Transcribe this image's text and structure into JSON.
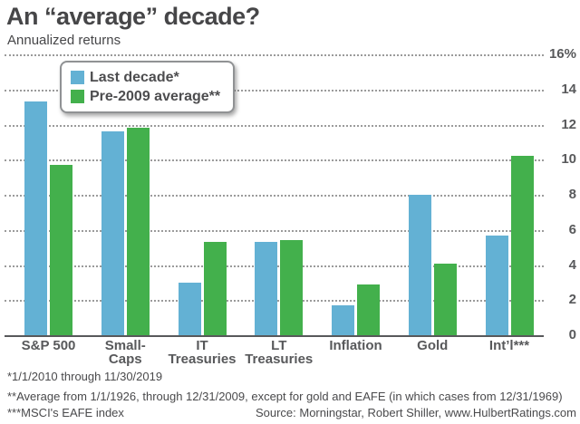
{
  "header": {
    "title": "An “average” decade?",
    "subtitle": "Annualized returns"
  },
  "legend": {
    "items": [
      {
        "label": "Last decade*",
        "color": "#63b1d4"
      },
      {
        "label": "Pre-2009 average**",
        "color": "#43b04c"
      }
    ]
  },
  "chart_data": {
    "type": "bar",
    "title": "An “average” decade?",
    "subtitle": "Annualized returns",
    "categories": [
      "S&P 500",
      "Small-Caps",
      "IT Treasuries",
      "LT Treasuries",
      "Inflation",
      "Gold",
      "Int’l***"
    ],
    "category_lines": [
      [
        "S&P 500"
      ],
      [
        "Small-",
        "Caps"
      ],
      [
        "IT",
        "Treasuries"
      ],
      [
        "LT",
        "Treasuries"
      ],
      [
        "Inflation"
      ],
      [
        "Gold"
      ],
      [
        "Int’l***"
      ]
    ],
    "series": [
      {
        "name": "Last decade*",
        "color": "#63b1d4",
        "values": [
          13.3,
          11.6,
          3.0,
          5.3,
          1.7,
          8.0,
          5.7
        ]
      },
      {
        "name": "Pre-2009 average**",
        "color": "#43b04c",
        "values": [
          9.7,
          11.8,
          5.3,
          5.4,
          2.9,
          4.1,
          10.2
        ]
      }
    ],
    "ylabel": "",
    "xlabel": "",
    "ylim": [
      0,
      16
    ],
    "ytick_values": [
      0,
      2,
      4,
      6,
      8,
      10,
      12,
      14,
      16
    ],
    "ytick_labels": [
      "0",
      "2",
      "4",
      "6",
      "8",
      "10",
      "12",
      "14",
      "16%"
    ],
    "yaxis_side": "right",
    "grid": "horizontal-dotted",
    "legend_position": "top-left"
  },
  "footnotes": {
    "fn1": "*1/1/2010 through 11/30/2019",
    "fn2": "**Average from 1/1/1926, through 12/31/2009, except for gold and EAFE (in which cases from 12/31/1969)",
    "fn3": "***MSCI's EAFE index",
    "source": "Source: Morningstar, Robert Shiller, www.HulbertRatings.com"
  },
  "colors": {
    "last_decade_blue": "#63b1d4",
    "pre_2009_green": "#43b04c",
    "axis_gray": "#58595b",
    "grid_gray": "#9b9b9b",
    "text_dark": "#464648"
  }
}
